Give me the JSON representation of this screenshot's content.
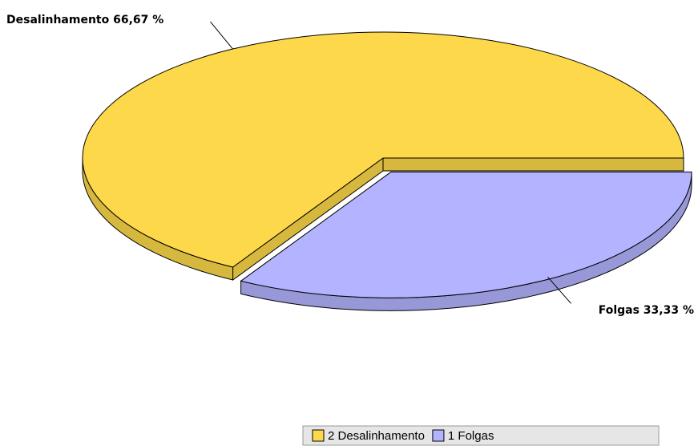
{
  "chart_data": {
    "type": "pie",
    "categories": [
      "2 Desalinhamento",
      "1 Folgas"
    ],
    "values": [
      66.67,
      33.33
    ],
    "value_labels": [
      "Desalinhamento 66,67 %",
      "Folgas 33,33 %"
    ],
    "colors": [
      "#fdd84a",
      "#b3b3ff"
    ],
    "legend": "bottom"
  }
}
